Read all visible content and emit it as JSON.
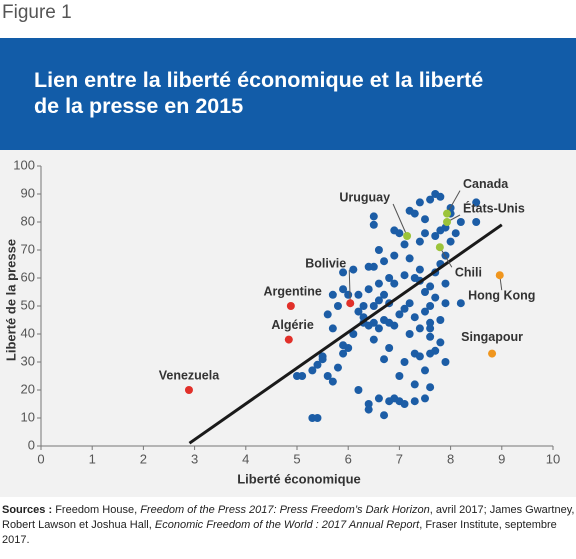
{
  "figure_label": "Figure 1",
  "chart_data": {
    "type": "scatter",
    "title": [
      "Lien entre la liberté économique et la liberté",
      "de la presse en 2015"
    ],
    "x_label": "Liberté économique",
    "y_label": "Liberté de la presse",
    "xlim": [
      0,
      10
    ],
    "ylim": [
      0,
      100
    ],
    "xticks": [
      0,
      1,
      2,
      3,
      4,
      5,
      6,
      7,
      8,
      9,
      10
    ],
    "yticks": [
      0,
      10,
      20,
      30,
      40,
      50,
      60,
      70,
      80,
      90,
      100
    ],
    "grid": false,
    "series": [
      {
        "color": "#1c5da6",
        "x": [
          5.3,
          5.4,
          5.1,
          5.3,
          5.4,
          5.5,
          5.6,
          5.7,
          5.8,
          5.9,
          6.0,
          5.9,
          6.2,
          6.4,
          6.4,
          6.6,
          6.7,
          6.8,
          6.9,
          7.0,
          7.1,
          7.3,
          7.5,
          7.6,
          7.0,
          7.3,
          7.5,
          7.1,
          7.3,
          7.4,
          7.6,
          7.7,
          7.8,
          7.6,
          7.2,
          7.4,
          7.6,
          7.8,
          6.7,
          6.8,
          6.5,
          6.4,
          6.5,
          6.6,
          6.7,
          6.8,
          6.9,
          6.3,
          6.2,
          6.3,
          6.5,
          6.6,
          6.7,
          6.8,
          7.0,
          7.1,
          7.2,
          7.3,
          7.5,
          7.6,
          7.7,
          7.9,
          7.5,
          7.6,
          7.4,
          7.3,
          7.1,
          6.9,
          6.8,
          6.6,
          6.4,
          6.2,
          6.0,
          5.9,
          5.9,
          6.1,
          6.4,
          6.5,
          6.7,
          6.6,
          6.9,
          7.2,
          7.4,
          7.7,
          7.8,
          7.9,
          8.0,
          8.1,
          7.9,
          8.2,
          8.5,
          8.5,
          7.7,
          7.8,
          7.6,
          7.4,
          7.3,
          7.5,
          7.2,
          6.5,
          6.5,
          6.9,
          7.0,
          7.1,
          7.4,
          7.5,
          7.7,
          7.8,
          8.0,
          8.0,
          5.5,
          5.6,
          5.8,
          5.7,
          6.1,
          6.3,
          5.0,
          5.7,
          7.9,
          8.2,
          7.6,
          7.9
        ],
        "y": [
          10,
          10,
          25,
          27,
          29,
          32,
          25,
          23,
          28,
          33,
          35,
          36,
          20,
          15,
          13,
          17,
          11,
          16,
          17,
          16,
          15,
          16,
          17,
          21,
          25,
          22,
          27,
          30,
          33,
          32,
          33,
          34,
          37,
          39,
          40,
          42,
          42,
          45,
          31,
          35,
          38,
          43,
          44,
          42,
          45,
          44,
          43,
          46,
          48,
          50,
          50,
          52,
          54,
          51,
          47,
          49,
          51,
          46,
          48,
          50,
          53,
          51,
          55,
          57,
          59,
          60,
          61,
          58,
          60,
          58,
          56,
          54,
          54,
          56,
          62,
          63,
          64,
          64,
          66,
          70,
          68,
          67,
          63,
          62,
          65,
          68,
          73,
          76,
          78,
          80,
          80,
          87,
          90,
          89,
          88,
          87,
          83,
          81,
          84,
          82,
          79,
          77,
          76,
          72,
          73,
          76,
          75,
          77,
          83,
          85,
          31,
          47,
          50,
          54,
          40,
          44,
          25,
          42,
          58,
          51,
          44,
          30
        ]
      }
    ],
    "trend_line": {
      "color": "#1a1a1a",
      "x": [
        2.9,
        9.0
      ],
      "y": [
        1,
        79
      ]
    },
    "annotations": [
      {
        "label": "Venezuela",
        "x": 2.89,
        "y": 20,
        "color": "#e1302a"
      },
      {
        "label": "Argentine",
        "x": 4.88,
        "y": 50,
        "color": "#e1302a"
      },
      {
        "label": "Algérie",
        "x": 4.84,
        "y": 38,
        "color": "#e1302a"
      },
      {
        "label": "Bolivie",
        "x": 6.04,
        "y": 51,
        "color": "#e1302a"
      },
      {
        "label": "Uruguay",
        "x": 7.15,
        "y": 75,
        "color": "#9cc43a"
      },
      {
        "label": "Canada",
        "x": 7.93,
        "y": 83,
        "color": "#9cc43a"
      },
      {
        "label": "États-Unis",
        "x": 7.93,
        "y": 80,
        "color": "#9cc43a"
      },
      {
        "label": "Chili",
        "x": 7.79,
        "y": 71,
        "color": "#9cc43a"
      },
      {
        "label": "Hong Kong",
        "x": 8.96,
        "y": 61,
        "color": "#f0961e"
      },
      {
        "label": "Singapour",
        "x": 8.81,
        "y": 33,
        "color": "#f0961e"
      }
    ]
  },
  "sources": [
    {
      "text": "Sources :",
      "style": "bold"
    },
    {
      "text": " Freedom House, ",
      "style": "normal"
    },
    {
      "text": "Freedom of the Press 2017: Press Freedom’s Dark Horizon",
      "style": "italic"
    },
    {
      "text": ", avril 2017; James Gwartney, Robert Lawson et Joshua Hall, ",
      "style": "normal"
    },
    {
      "text": "Economic Freedom of the World : 2017 Annual Report",
      "style": "italic"
    },
    {
      "text": ", Fraser Institute, septembre 2017.",
      "style": "normal"
    }
  ]
}
